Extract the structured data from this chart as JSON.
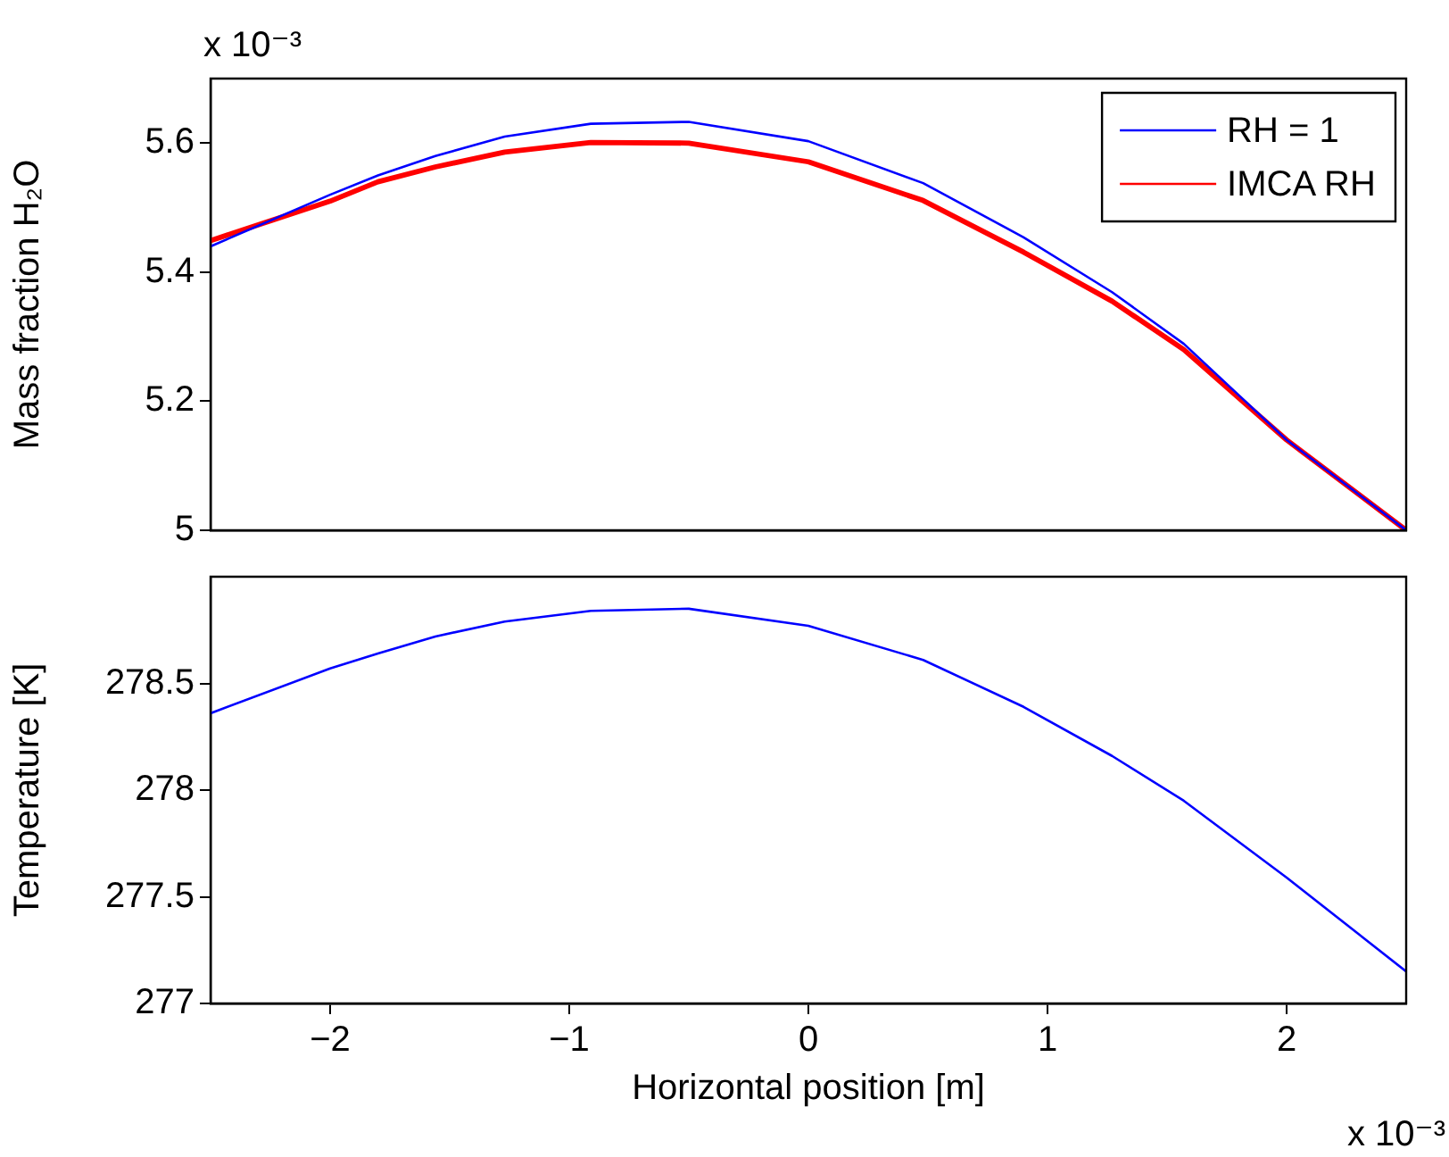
{
  "chart_data": [
    {
      "type": "line",
      "ylabel": "Mass fraction H₂O",
      "annotations": [
        "x 10⁻³"
      ],
      "x": [
        -2.5,
        -2.0,
        -1.8,
        -1.56,
        -1.27,
        -0.91,
        -0.5,
        0.0,
        0.48,
        0.9,
        1.27,
        1.57,
        2.0,
        2.5
      ],
      "series": [
        {
          "name": "RH = 1",
          "color": "#0000ff",
          "values": [
            5.44,
            5.52,
            5.55,
            5.58,
            5.61,
            5.63,
            5.633,
            5.603,
            5.538,
            5.454,
            5.369,
            5.289,
            5.14,
            5.0
          ]
        },
        {
          "name": "IMCA RH",
          "color": "#ff0000",
          "values": [
            5.449,
            5.51,
            5.54,
            5.563,
            5.586,
            5.601,
            5.6,
            5.571,
            5.511,
            5.431,
            5.355,
            5.28,
            5.14,
            5.0
          ]
        }
      ],
      "xlim": [
        -2.5,
        2.5
      ],
      "xticks": [
        -2,
        -1,
        0,
        1,
        2
      ],
      "ylim": [
        5,
        5.7
      ],
      "yticks": [
        5,
        5.2,
        5.4,
        5.6
      ],
      "tick_labels": "y",
      "legend": "top right",
      "grid": false,
      "marker": "none",
      "line_style": "solid"
    },
    {
      "type": "line",
      "xlabel": "Horizontal position [m]",
      "ylabel": "Temperature [K]",
      "annotations": [
        "x 10⁻³"
      ],
      "x": [
        -2.5,
        -2.0,
        -1.8,
        -1.56,
        -1.27,
        -0.91,
        -0.5,
        0.0,
        0.48,
        0.9,
        1.27,
        1.57,
        2.0,
        2.5
      ],
      "series": [
        {
          "color": "#0000ff",
          "values": [
            278.36,
            278.57,
            278.64,
            278.72,
            278.79,
            278.84,
            278.85,
            278.77,
            278.61,
            278.39,
            278.16,
            277.95,
            277.59,
            277.15
          ]
        }
      ],
      "xlim": [
        -2.5,
        2.5
      ],
      "xticks": [
        -2,
        -1,
        0,
        1,
        2
      ],
      "ylim": [
        277,
        279
      ],
      "yticks": [
        277,
        277.5,
        278,
        278.5
      ],
      "grid": false,
      "marker": "none",
      "line_style": "solid"
    }
  ]
}
